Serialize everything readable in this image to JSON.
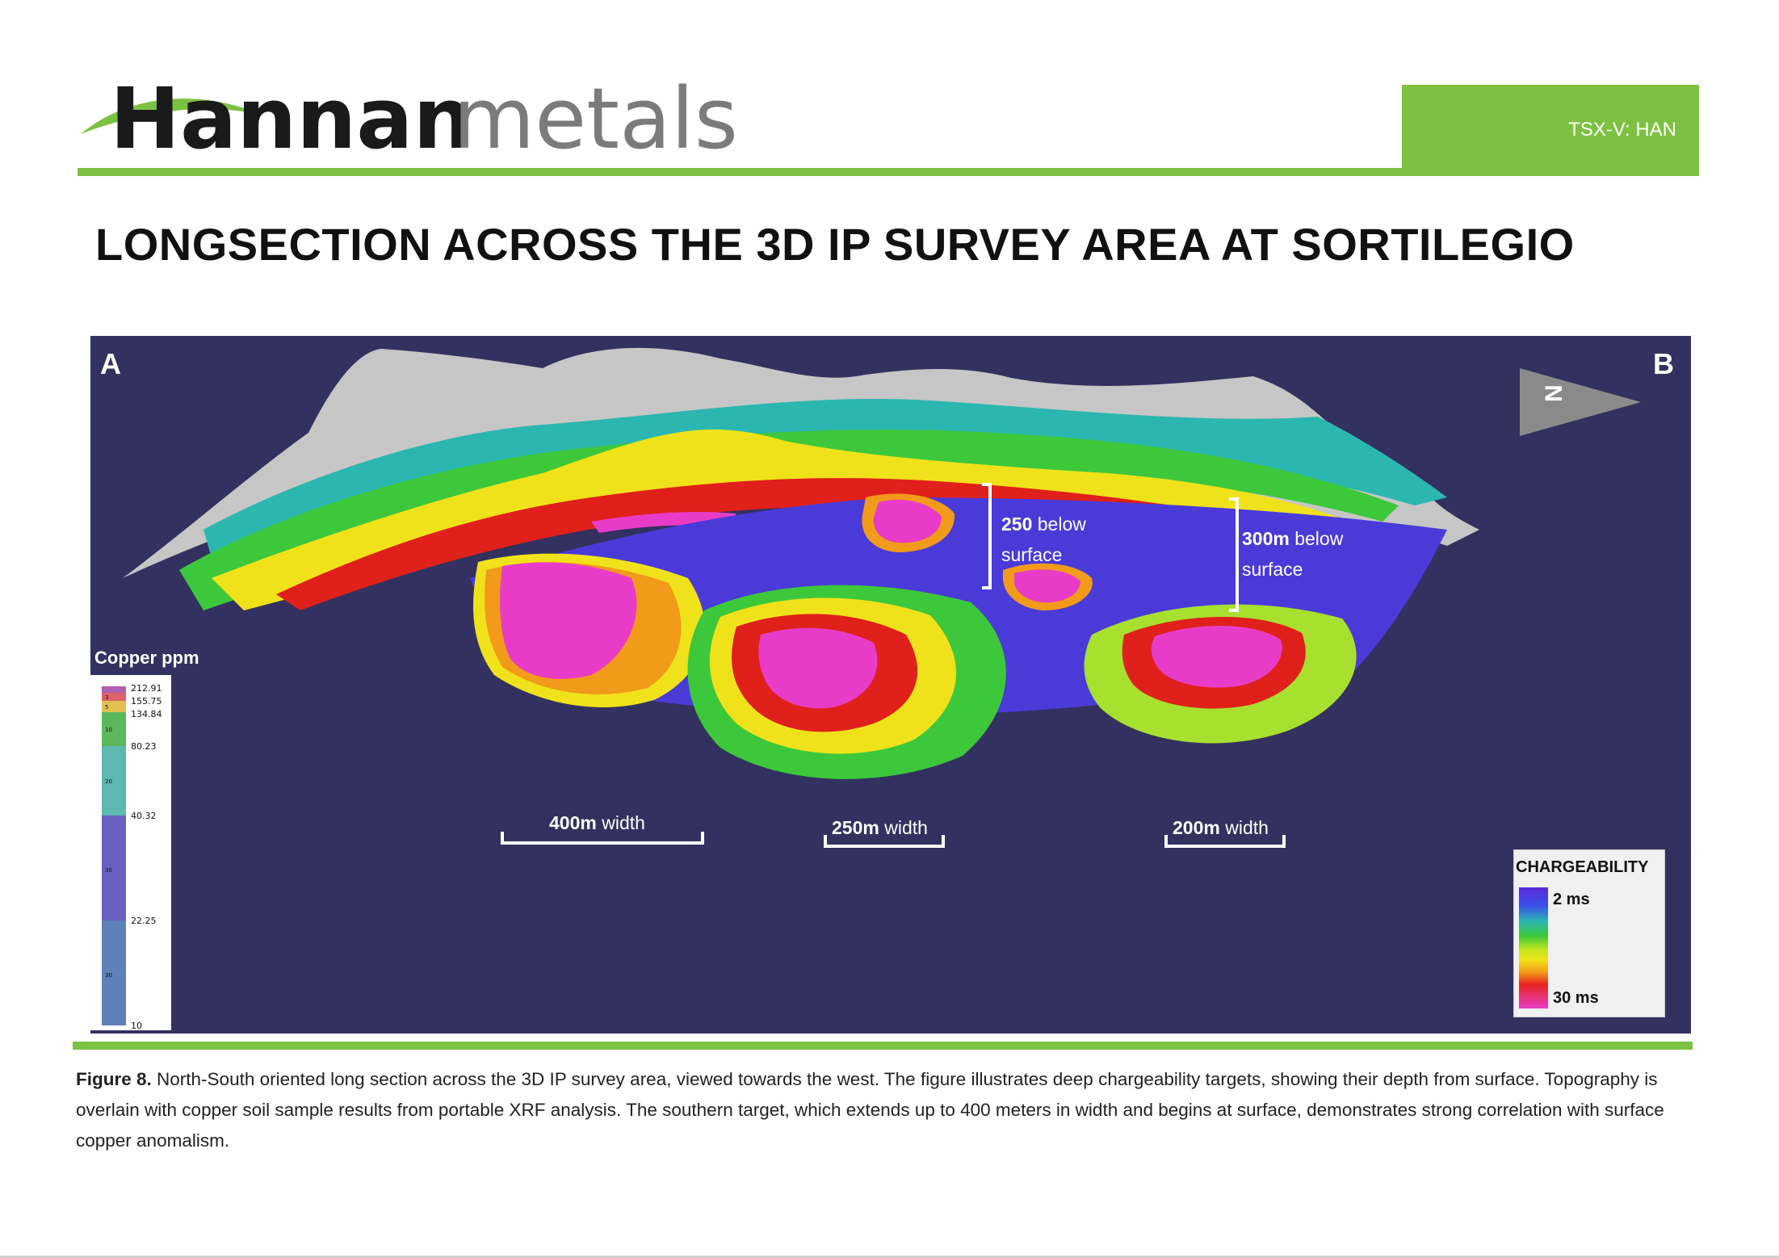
{
  "header": {
    "logo_word_1": "Hannan",
    "logo_word_2": "metals",
    "ticker": "TSX-V: HAN",
    "colors": {
      "brand_green": "#7dc143",
      "logo_dark": "#1a1a1a",
      "logo_grey": "#7b7b7b"
    }
  },
  "title": "LONGSECTION ACROSS THE 3D IP SURVEY AREA AT SORTILEGIO",
  "figure": {
    "corner_a": "A",
    "corner_b": "B",
    "north_label": "N",
    "annotations": [
      {
        "bold": "250",
        "rest": " below",
        "line2": "surface"
      },
      {
        "bold": "300m",
        "rest": " below",
        "line2": "surface"
      }
    ],
    "width_labels": [
      {
        "bold": "400m",
        "rest": " width"
      },
      {
        "bold": "250m",
        "rest": " width"
      },
      {
        "bold": "200m",
        "rest": " width"
      }
    ],
    "legend_copper": {
      "title": "Copper  ppm",
      "ticks": [
        "212.91",
        "155.75",
        "134.84",
        "80.23",
        "40.32",
        "22.25",
        "10"
      ],
      "counts": [
        "3",
        "5",
        "10",
        "20",
        "30",
        "30"
      ]
    },
    "legend_chargeability": {
      "title": "CHARGEABILITY",
      "min_label": "2 ms",
      "max_label": "30 ms"
    },
    "colors": {
      "background": "#33315f",
      "topography_grey": "#c8c8c8",
      "magenta": "#e83cc8",
      "red": "#e0201a",
      "orange": "#f29a1a",
      "yellow": "#f0e21a",
      "green": "#3cc83a",
      "teal": "#2bb7b0",
      "blue": "#4a3ad8"
    }
  },
  "caption": {
    "label": "Figure 8.",
    "text": " North-South oriented long section across the 3D IP survey area, viewed towards the west. The figure illustrates deep chargeability targets, showing their depth from surface. Topography is overlain with copper soil sample results from portable XRF analysis. The southern target, which extends up to 400 meters in width and begins at surface, demonstrates strong correlation with surface copper anomalism."
  }
}
